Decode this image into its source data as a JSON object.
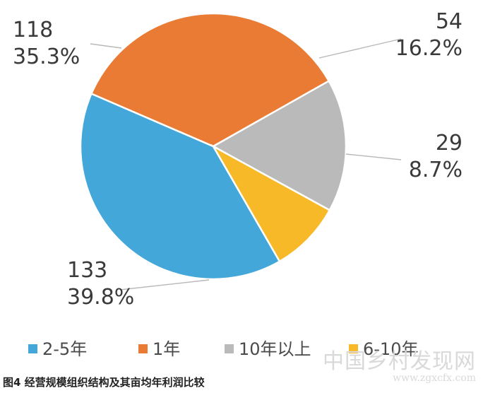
{
  "chart_data": {
    "type": "pie",
    "categories": [
      "2-5年",
      "1年",
      "10年以上",
      "6-10年"
    ],
    "values": [
      133,
      118,
      54,
      29
    ],
    "percent_labels": [
      "39.8%",
      "35.3%",
      "16.2%",
      "8.7%"
    ],
    "colors": [
      "#44a7d9",
      "#ea7b34",
      "#bababa",
      "#f7b928"
    ],
    "legend_placement": "bottom"
  },
  "caption": "图4 经营规模组织结构及其亩均年利润比较",
  "watermark": {
    "text": "中国乡村发现网",
    "url": "www.zgxcfx.com"
  }
}
